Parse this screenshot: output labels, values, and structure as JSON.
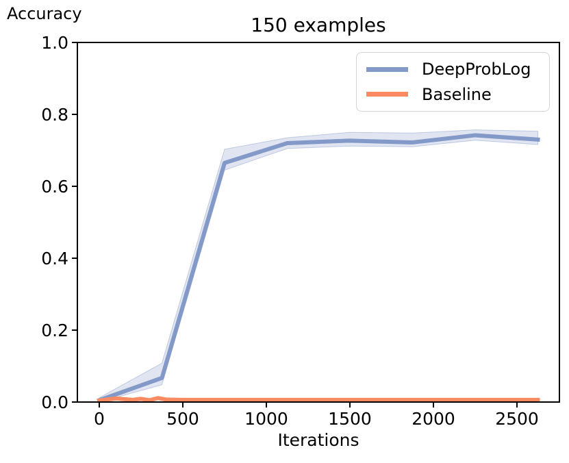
{
  "figure": {
    "title": "150 examples",
    "ylabel_top": "Accuracy",
    "xlabel": "Iterations"
  },
  "legend": {
    "items": [
      {
        "label": "DeepProbLog",
        "color": "#8399c8"
      },
      {
        "label": "Baseline",
        "color": "#fa8a61"
      }
    ]
  },
  "chart_data": {
    "type": "line",
    "title": "150 examples",
    "xlabel": "Iterations",
    "ylabel": "Accuracy",
    "xlim": [
      -131,
      2754
    ],
    "ylim": [
      0,
      1
    ],
    "x_ticks": [
      0,
      500,
      1000,
      1500,
      2000,
      2500
    ],
    "y_ticks": [
      0.0,
      0.2,
      0.4,
      0.6,
      0.8,
      1.0
    ],
    "grid": false,
    "legend_position": "upper right",
    "axis_color": "#000000",
    "series": [
      {
        "name": "DeepProbLog",
        "color": "#8399c8",
        "line_width": 6,
        "x": [
          0,
          375,
          750,
          1125,
          1500,
          1875,
          2250,
          2625
        ],
        "values": [
          0.005,
          0.067,
          0.665,
          0.72,
          0.727,
          0.722,
          0.742,
          0.73
        ],
        "band_upper": [
          0.012,
          0.108,
          0.703,
          0.735,
          0.75,
          0.748,
          0.757,
          0.753
        ],
        "band_lower": [
          0.0,
          0.048,
          0.645,
          0.705,
          0.712,
          0.71,
          0.728,
          0.716
        ],
        "band_color": "rgba(131,153,200,0.25)",
        "band_edge_color": "rgba(131,153,200,0.45)"
      },
      {
        "name": "Baseline",
        "color": "#fa8a61",
        "line_width": 6,
        "x": [
          0,
          100,
          200,
          250,
          300,
          350,
          400,
          500,
          750,
          1125,
          1500,
          1875,
          2250,
          2625
        ],
        "values": [
          0.004,
          0.01,
          0.006,
          0.009,
          0.005,
          0.011,
          0.007,
          0.006,
          0.006,
          0.006,
          0.006,
          0.006,
          0.006,
          0.006
        ]
      }
    ]
  }
}
